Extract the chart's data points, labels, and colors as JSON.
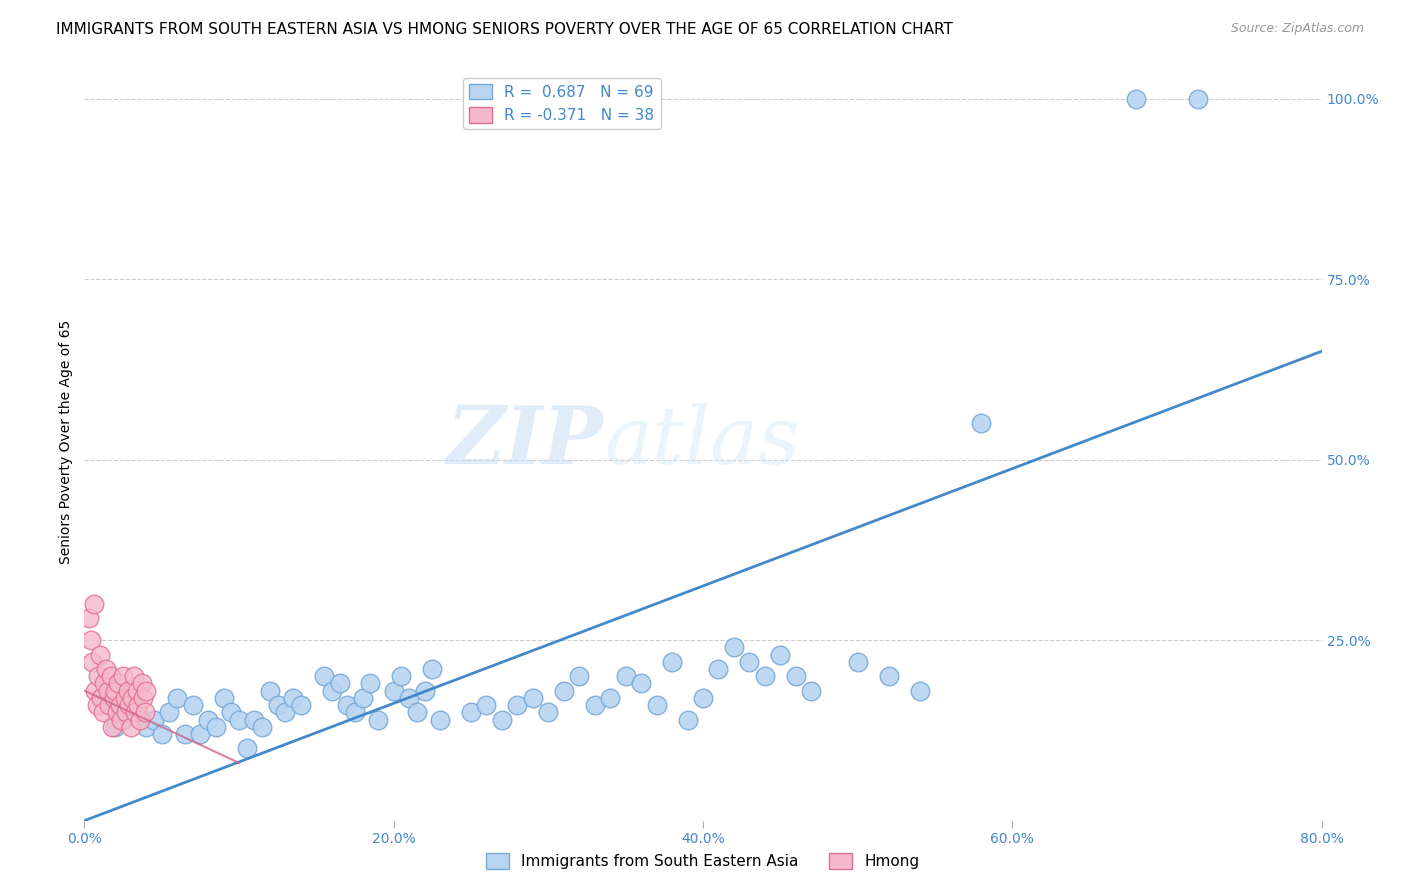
{
  "title": "IMMIGRANTS FROM SOUTH EASTERN ASIA VS HMONG SENIORS POVERTY OVER THE AGE OF 65 CORRELATION CHART",
  "source": "Source: ZipAtlas.com",
  "ylabel": "Seniors Poverty Over the Age of 65",
  "xlim": [
    0.0,
    0.8
  ],
  "ylim": [
    0.0,
    1.05
  ],
  "xticks": [
    0.0,
    0.2,
    0.4,
    0.6,
    0.8
  ],
  "xticklabels": [
    "0.0%",
    "20.0%",
    "40.0%",
    "60.0%",
    "80.0%"
  ],
  "yticks": [
    0.0,
    0.25,
    0.5,
    0.75,
    1.0
  ],
  "yticklabels_right": [
    "100.0%",
    "75.0%",
    "50.0%",
    "25.0%",
    ""
  ],
  "blue_R": 0.687,
  "blue_N": 69,
  "pink_R": -0.371,
  "pink_N": 38,
  "blue_color": "#b8d4f0",
  "blue_edge": "#7aaad8",
  "pink_color": "#f5b8cc",
  "pink_edge": "#e07090",
  "blue_line_color": "#4488cc",
  "pink_line_color": "#cc6688",
  "legend_blue_label": "Immigrants from South Eastern Asia",
  "legend_pink_label": "Hmong",
  "watermark_zip": "ZIP",
  "watermark_atlas": "atlas",
  "blue_line_x0": 0.0,
  "blue_line_y0": 0.0,
  "blue_line_x1": 0.8,
  "blue_line_y1": 0.65,
  "pink_line_x0": 0.0,
  "pink_line_y0": 0.18,
  "pink_line_x1": 0.1,
  "pink_line_y1": 0.08,
  "blue_scatter_x": [
    0.02,
    0.025,
    0.03,
    0.035,
    0.04,
    0.045,
    0.05,
    0.055,
    0.06,
    0.065,
    0.07,
    0.075,
    0.08,
    0.085,
    0.09,
    0.095,
    0.1,
    0.105,
    0.11,
    0.115,
    0.12,
    0.125,
    0.13,
    0.135,
    0.14,
    0.155,
    0.16,
    0.165,
    0.17,
    0.175,
    0.18,
    0.185,
    0.19,
    0.2,
    0.205,
    0.21,
    0.215,
    0.22,
    0.225,
    0.23,
    0.25,
    0.26,
    0.27,
    0.28,
    0.29,
    0.3,
    0.31,
    0.32,
    0.33,
    0.34,
    0.35,
    0.36,
    0.37,
    0.38,
    0.39,
    0.4,
    0.41,
    0.42,
    0.43,
    0.44,
    0.45,
    0.46,
    0.47,
    0.5,
    0.52,
    0.54,
    0.58,
    0.68,
    0.72
  ],
  "blue_scatter_y": [
    0.13,
    0.14,
    0.16,
    0.15,
    0.13,
    0.14,
    0.12,
    0.15,
    0.17,
    0.12,
    0.16,
    0.12,
    0.14,
    0.13,
    0.17,
    0.15,
    0.14,
    0.1,
    0.14,
    0.13,
    0.18,
    0.16,
    0.15,
    0.17,
    0.16,
    0.2,
    0.18,
    0.19,
    0.16,
    0.15,
    0.17,
    0.19,
    0.14,
    0.18,
    0.2,
    0.17,
    0.15,
    0.18,
    0.21,
    0.14,
    0.15,
    0.16,
    0.14,
    0.16,
    0.17,
    0.15,
    0.18,
    0.2,
    0.16,
    0.17,
    0.2,
    0.19,
    0.16,
    0.22,
    0.14,
    0.17,
    0.21,
    0.24,
    0.22,
    0.2,
    0.23,
    0.2,
    0.18,
    0.22,
    0.2,
    0.18,
    0.55,
    1.0,
    1.0
  ],
  "pink_scatter_x": [
    0.003,
    0.004,
    0.005,
    0.006,
    0.007,
    0.008,
    0.009,
    0.01,
    0.011,
    0.012,
    0.013,
    0.014,
    0.015,
    0.016,
    0.017,
    0.018,
    0.019,
    0.02,
    0.021,
    0.022,
    0.023,
    0.024,
    0.025,
    0.026,
    0.027,
    0.028,
    0.029,
    0.03,
    0.031,
    0.032,
    0.033,
    0.034,
    0.035,
    0.036,
    0.037,
    0.038,
    0.039,
    0.04
  ],
  "pink_scatter_y": [
    0.28,
    0.25,
    0.22,
    0.3,
    0.18,
    0.16,
    0.2,
    0.23,
    0.17,
    0.15,
    0.19,
    0.21,
    0.18,
    0.16,
    0.2,
    0.13,
    0.17,
    0.18,
    0.15,
    0.19,
    0.16,
    0.14,
    0.2,
    0.17,
    0.15,
    0.18,
    0.16,
    0.13,
    0.17,
    0.2,
    0.15,
    0.18,
    0.16,
    0.14,
    0.19,
    0.17,
    0.15,
    0.18
  ],
  "background_color": "#ffffff",
  "grid_color": "#cccccc",
  "title_fontsize": 11,
  "axis_label_fontsize": 10,
  "tick_fontsize": 10,
  "legend_fontsize": 11,
  "source_fontsize": 9
}
